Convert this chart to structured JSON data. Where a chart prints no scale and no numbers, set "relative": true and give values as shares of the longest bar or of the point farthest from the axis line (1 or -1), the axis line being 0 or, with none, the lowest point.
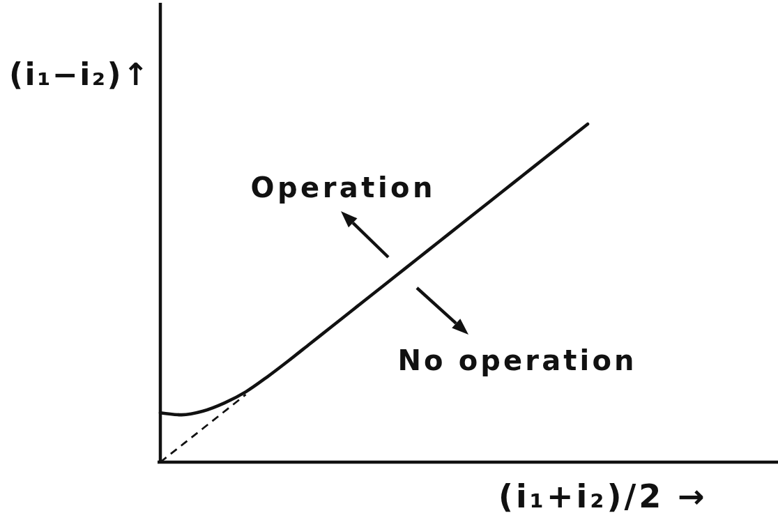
{
  "chart_data": {
    "type": "line",
    "xlabel": "(i₁+i₂)/2 →",
    "ylabel": "(i₁−i₂)↑",
    "relative": true,
    "categories": [
      null,
      null,
      null,
      null,
      null,
      null,
      null,
      null,
      null,
      null,
      null,
      null,
      null,
      null,
      null,
      null,
      null,
      null,
      null,
      null,
      null
    ],
    "series": [
      {
        "color": "#111111",
        "line_style": "solid",
        "values": [
          0.146,
          0.14,
          0.151,
          0.175,
          0.208,
          0.252,
          0.3,
          0.35,
          0.4,
          0.45,
          0.5,
          0.55,
          0.6,
          0.65,
          0.7,
          0.75,
          0.8,
          0.85,
          0.9,
          0.95,
          1.0
        ]
      },
      {
        "color": "#111111",
        "line_style": "dashed",
        "values": [
          0,
          0.05,
          0.1,
          0.15,
          0.2,
          null,
          null,
          null,
          null,
          null,
          null,
          null,
          null,
          null,
          null,
          null,
          null,
          null,
          null,
          null,
          null
        ]
      }
    ],
    "annotations": [
      "Operation",
      "No operation"
    ]
  }
}
